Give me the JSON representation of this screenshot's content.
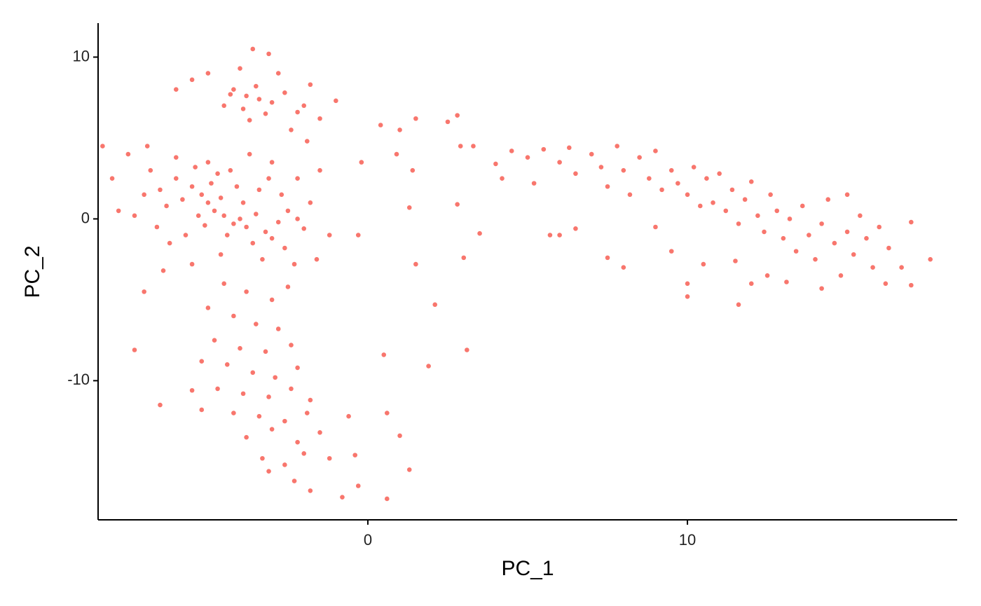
{
  "chart_data": {
    "type": "scatter",
    "xlabel": "PC_1",
    "ylabel": "PC_2",
    "color": "#F8766D",
    "xlim": [
      -8.44,
      18.44
    ],
    "ylim": [
      -18.6,
      12.1
    ],
    "xticks": [
      0,
      10
    ],
    "yticks": [
      -10,
      0,
      10
    ],
    "x": [
      -4.2,
      -3.8,
      -3.5,
      -3.0,
      -2.6,
      -4.5,
      -3.9,
      -3.2,
      -2.2,
      -1.8,
      -4.0,
      -3.6,
      -3.1,
      -5.0,
      -5.5,
      -6.0,
      -2.0,
      -1.5,
      -1.0,
      -2.8,
      -4.3,
      -3.4,
      -3.7,
      -2.4,
      -1.9,
      -5.0,
      -4.8,
      -5.2,
      -4.5,
      -4.2,
      -5.5,
      -5.8,
      -4.0,
      -3.8,
      -3.5,
      -3.2,
      -2.8,
      -2.5,
      -6.0,
      -6.3,
      -6.5,
      -5.3,
      -4.6,
      -4.9,
      -5.1,
      -4.4,
      -3.9,
      -3.6,
      -3.0,
      -2.6,
      -2.2,
      -2.0,
      -1.8,
      -6.8,
      -7.0,
      -7.3,
      -6.6,
      -6.2,
      -5.7,
      -5.4,
      -4.7,
      -4.1,
      -3.4,
      -3.1,
      -2.7,
      -7.8,
      -8.0,
      -7.5,
      -6.9,
      -6.0,
      -5.0,
      -4.3,
      -3.7,
      -3.0,
      -2.2,
      -1.5,
      -1.2,
      -1.6,
      -2.3,
      -3.3,
      -4.6,
      -5.5,
      -6.4,
      -7.0,
      -8.3,
      -4.5,
      -3.8,
      -3.0,
      -2.5,
      -5.0,
      -4.2,
      -3.5,
      -2.8,
      -4.8,
      -4.0,
      -3.2,
      -2.4,
      -5.2,
      -4.4,
      -3.6,
      -2.9,
      -2.2,
      -4.7,
      -3.9,
      -3.1,
      -2.4,
      -1.8,
      -4.2,
      -3.4,
      -2.6,
      -1.9,
      -3.8,
      -3.0,
      -2.2,
      -1.5,
      -3.3,
      -2.6,
      -2.0,
      -3.1,
      -2.3,
      -1.8,
      -1.2,
      -0.6,
      -0.4,
      -0.8,
      -0.3,
      -5.5,
      -6.5,
      -7.3,
      -5.2,
      0.4,
      1.0,
      1.5,
      0.9,
      1.4,
      2.5,
      2.8,
      2.9,
      3.3,
      -0.2,
      1.3,
      -0.3,
      1.5,
      2.1,
      3.1,
      0.5,
      1.9,
      0.6,
      1.0,
      1.3,
      0.6,
      2.8,
      3.5,
      3.0,
      4.0,
      4.5,
      4.2,
      5.0,
      5.5,
      5.2,
      6.0,
      6.3,
      6.5,
      7.0,
      7.3,
      7.5,
      7.8,
      8.0,
      8.2,
      8.5,
      8.8,
      9.0,
      9.2,
      9.5,
      9.7,
      10.0,
      10.2,
      10.4,
      10.6,
      10.8,
      11.0,
      11.2,
      11.4,
      11.6,
      11.8,
      12.0,
      12.2,
      12.4,
      12.6,
      12.8,
      13.0,
      13.2,
      13.4,
      13.6,
      13.8,
      14.0,
      14.2,
      14.4,
      14.6,
      14.8,
      15.0,
      15.2,
      15.4,
      15.6,
      15.8,
      16.0,
      16.3,
      16.7,
      17.0,
      17.0,
      17.6,
      12.5,
      13.1,
      12.0,
      11.5,
      10.5,
      10.0,
      10.0,
      11.6,
      9.5,
      8.0,
      7.5,
      6.5,
      6.0,
      9.0,
      14.2,
      15.0,
      16.2,
      5.7
    ],
    "values": [
      8.0,
      7.6,
      8.2,
      7.2,
      7.8,
      7.0,
      6.8,
      6.5,
      6.6,
      8.3,
      9.3,
      10.5,
      10.2,
      9.0,
      8.6,
      8.0,
      7.0,
      6.2,
      7.3,
      9.0,
      7.7,
      7.4,
      6.1,
      5.5,
      4.8,
      1.0,
      0.5,
      1.5,
      0.2,
      -0.3,
      2.0,
      1.2,
      0.0,
      -0.5,
      0.3,
      -0.8,
      -0.2,
      0.5,
      2.5,
      0.8,
      1.8,
      0.2,
      1.3,
      2.2,
      -0.4,
      -1.0,
      1.0,
      -1.5,
      -1.2,
      -1.8,
      0.0,
      -0.6,
      1.0,
      3.0,
      1.5,
      0.2,
      -0.5,
      -1.5,
      -1.0,
      3.2,
      2.8,
      2.0,
      1.8,
      2.5,
      1.5,
      0.5,
      2.5,
      4.0,
      4.5,
      3.8,
      3.5,
      3.0,
      4.0,
      3.5,
      2.5,
      3.0,
      -1.0,
      -2.5,
      -2.8,
      -2.5,
      -2.2,
      -2.8,
      -3.2,
      -4.5,
      4.5,
      -4.0,
      -4.5,
      -5.0,
      -4.2,
      -5.5,
      -6.0,
      -6.5,
      -6.8,
      -7.5,
      -8.0,
      -8.2,
      -7.8,
      -8.8,
      -9.0,
      -9.5,
      -9.8,
      -9.2,
      -10.5,
      -10.8,
      -11.0,
      -10.5,
      -11.2,
      -12.0,
      -12.2,
      -12.5,
      -12.0,
      -13.5,
      -13.0,
      -13.8,
      -13.2,
      -14.8,
      -15.2,
      -14.5,
      -15.6,
      -16.2,
      -16.8,
      -14.8,
      -12.2,
      -14.6,
      -17.2,
      -16.5,
      -10.6,
      -11.5,
      -8.1,
      -11.8,
      5.8,
      5.5,
      6.2,
      4.0,
      3.0,
      6.0,
      6.4,
      4.5,
      4.5,
      3.5,
      0.7,
      -1.0,
      -2.8,
      -5.3,
      -8.1,
      -8.4,
      -9.1,
      -12.0,
      -13.4,
      -15.5,
      -17.3,
      0.9,
      -0.9,
      -2.4,
      3.4,
      4.2,
      2.5,
      3.8,
      4.3,
      2.2,
      3.5,
      4.4,
      2.8,
      4.0,
      3.2,
      2.0,
      4.5,
      3.0,
      1.5,
      3.8,
      2.5,
      4.2,
      1.8,
      3.0,
      2.2,
      1.5,
      3.2,
      0.8,
      2.5,
      1.0,
      2.8,
      0.5,
      1.8,
      -0.3,
      1.2,
      2.3,
      0.2,
      -0.8,
      1.5,
      0.5,
      -1.2,
      0.0,
      -2.0,
      0.8,
      -1.0,
      -2.5,
      -0.3,
      1.2,
      -1.5,
      -3.5,
      -0.8,
      -2.2,
      0.2,
      -1.2,
      -3.0,
      -0.5,
      -1.8,
      -3.0,
      -0.2,
      -4.1,
      -2.5,
      -3.5,
      -3.9,
      -4.0,
      -2.6,
      -2.8,
      -4.0,
      -4.8,
      -5.3,
      -2.0,
      -3.0,
      -2.4,
      -0.6,
      -1.0,
      -0.5,
      -4.3,
      1.5,
      -4.0,
      -1.0
    ]
  }
}
